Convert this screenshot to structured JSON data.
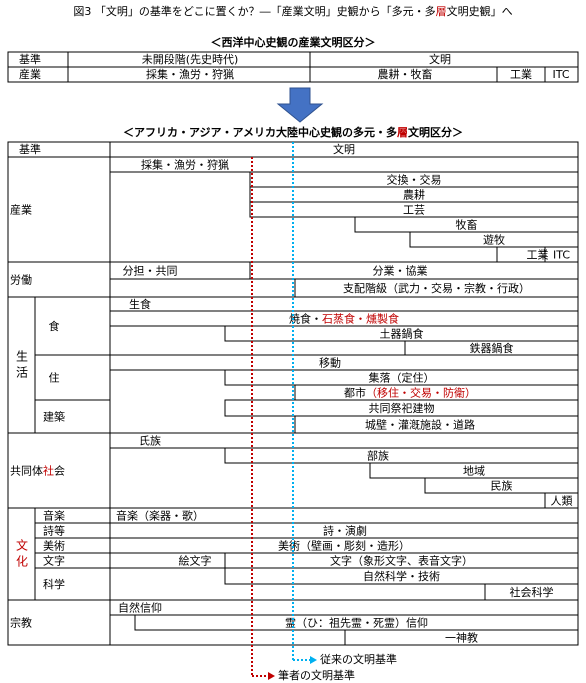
{
  "title": [
    {
      "text": "図3 「文明」の基準をどこに置くか？―「産業文明」史観から「多元・多"
    },
    {
      "text": "層",
      "color": "#c00000"
    },
    {
      "text": "文明史観」へ"
    }
  ],
  "western": {
    "heading": "＜西洋中心史観の産業文明区分＞",
    "header": [
      "基準",
      "未開段階(先史時代)",
      "文明"
    ],
    "row": [
      "産業",
      "採集・漁労・狩猟",
      "農耕・牧畜",
      "工業",
      "ITC"
    ]
  },
  "multi": {
    "heading": [
      {
        "text": "＜アフリカ・アジア・アメリカ大陸中心史観の多元・多"
      },
      {
        "text": "層",
        "color": "#c00000"
      },
      {
        "text": "文明区分＞"
      }
    ],
    "header": [
      "基準",
      "文明"
    ],
    "sections": [
      {
        "label": [
          {
            "text": "産業"
          }
        ],
        "groups": [
          {
            "items": [
              {
                "label": "採集・漁労・狩猟"
              },
              {
                "label": "交換・交易",
                "color": "#c00000"
              },
              {
                "label": "農耕"
              },
              {
                "label": "工芸",
                "color": "#c00000"
              },
              {
                "label": "牧畜"
              },
              {
                "label": "遊牧"
              },
              {
                "label": "工業"
              },
              {
                "label": "ITC"
              }
            ]
          }
        ]
      },
      {
        "label": [
          {
            "text": "労働"
          }
        ],
        "groups": [
          {
            "items": [
              {
                "label": "分担・共同"
              },
              {
                "label": "分業・協業"
              },
              {
                "label": "支配階級（武力・交易・宗教・行政）",
                "color": "#c00000"
              }
            ]
          }
        ]
      },
      {
        "label": [
          {
            "text": "生活"
          }
        ],
        "vertical": true,
        "groups": [
          {
            "label": "食",
            "items": [
              {
                "label": "生食"
              },
              {
                "parts": [
                  {
                    "text": "焼食・"
                  },
                  {
                    "text": "石蒸食・燻製食",
                    "color": "#c00000"
                  }
                ]
              },
              {
                "label": "土器鍋食"
              },
              {
                "label": "鉄器鍋食"
              }
            ]
          },
          {
            "label": "住",
            "items": [
              {
                "label": "移動"
              },
              {
                "label": "集落（定住）",
                "color": "#c00000"
              },
              {
                "parts": [
                  {
                    "text": "都市"
                  },
                  {
                    "text": "（移住・交易・防衛）",
                    "color": "#c00000"
                  }
                ]
              }
            ]
          },
          {
            "label": "建築",
            "color": "#c00000",
            "items": [
              {
                "label": "共同祭祀建物",
                "color": "#c00000"
              },
              {
                "label": "城壁・灌漑施設・道路",
                "color": "#c00000"
              }
            ]
          }
        ]
      },
      {
        "label": [
          {
            "text": "共同体"
          },
          {
            "text": "社",
            "color": "#c00000"
          },
          {
            "text": "会"
          }
        ],
        "groups": [
          {
            "items": [
              {
                "label": "氏族"
              },
              {
                "label": "部族"
              },
              {
                "label": "地域"
              },
              {
                "label": "民族"
              },
              {
                "label": "人類"
              }
            ]
          }
        ]
      },
      {
        "label": [
          {
            "text": "文化",
            "color": "#c00000"
          }
        ],
        "vertical": true,
        "groups": [
          {
            "label": "音楽",
            "color": "#c00000",
            "items": [
              {
                "label": "音楽（楽器・歌）",
                "color": "#c00000"
              }
            ]
          },
          {
            "label": "詩等",
            "color": "#c00000",
            "items": [
              {
                "label": "詩・演劇",
                "color": "#c00000"
              }
            ]
          },
          {
            "label": "美術",
            "color": "#c00000",
            "items": [
              {
                "label": "美術（壁画・彫刻・造形）",
                "color": "#c00000"
              }
            ]
          },
          {
            "label": "文字",
            "color": "#c00000",
            "items": [
              {
                "label": "絵文字"
              },
              {
                "label": "文字（象形文字、表音文字）",
                "color": "#c00000"
              }
            ]
          },
          {
            "label": "科学",
            "color": "#c00000",
            "items": [
              {
                "label": "自然科学・技術",
                "color": "#c00000"
              },
              {
                "label": "社会科学",
                "color": "#c00000"
              }
            ]
          }
        ]
      },
      {
        "label": [
          {
            "text": "宗教"
          }
        ],
        "groups": [
          {
            "items": [
              {
                "label": "自然信仰",
                "color": "#c00000"
              },
              {
                "label": "霊（ひ：祖先霊・死霊）信仰",
                "color": "#c00000"
              },
              {
                "label": "一神教"
              }
            ]
          }
        ]
      }
    ]
  },
  "legend": {
    "conventional": "従来の文明基準",
    "author": "筆者の文明基準"
  }
}
